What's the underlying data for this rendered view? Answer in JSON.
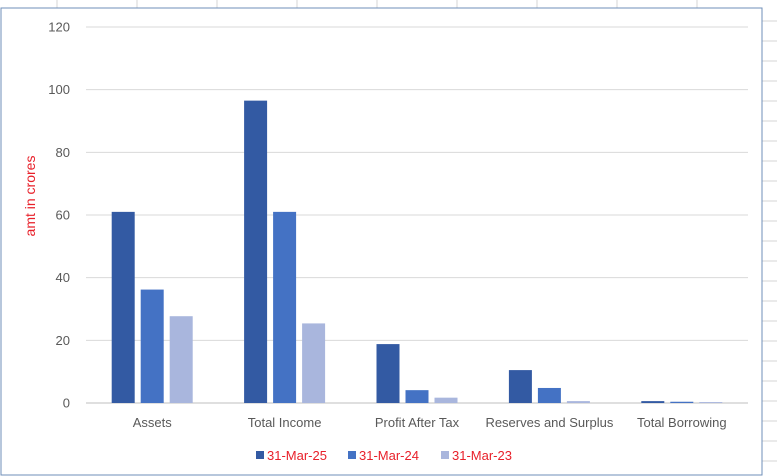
{
  "chart_data": {
    "type": "bar",
    "title": "",
    "xlabel": "",
    "ylabel": "amt in crores",
    "ylim": [
      0,
      120
    ],
    "yticks": [
      0,
      20,
      40,
      60,
      80,
      100,
      120
    ],
    "grid": true,
    "legend_position": "bottom",
    "categories": [
      "Assets",
      "Total Income",
      "Profit After Tax",
      "Reserves and Surplus",
      "Total Borrowing"
    ],
    "series": [
      {
        "name": "31-Mar-25",
        "color": "#335aa3",
        "values": [
          61,
          96.5,
          18.8,
          10.5,
          0.6
        ]
      },
      {
        "name": "31-Mar-24",
        "color": "#4472c4",
        "values": [
          36.2,
          61,
          4.1,
          4.8,
          0.4
        ]
      },
      {
        "name": "31-Mar-23",
        "color": "#a9b6dd",
        "values": [
          27.7,
          25.4,
          1.7,
          0.6,
          0.3
        ]
      }
    ],
    "colors": {
      "grid": "#d9d9d9",
      "axis": "#bfbfbf",
      "label_accent": "#e8202a",
      "frame": "#6f8fb8"
    }
  }
}
